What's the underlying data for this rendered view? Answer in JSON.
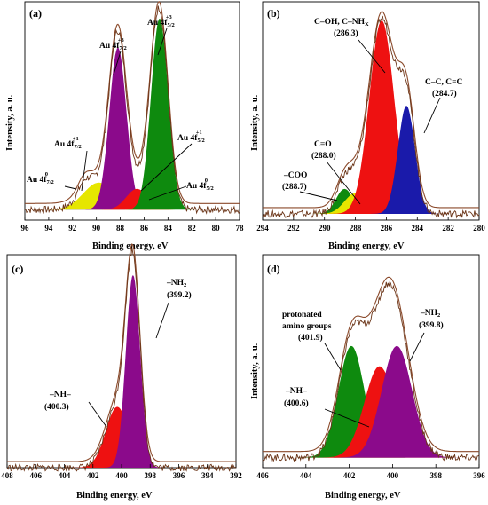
{
  "chart_data": [
    {
      "type": "area",
      "panel": "(a)",
      "xlabel": "Binding energy, eV",
      "ylabel": "Intensity, a. u.",
      "xlim": [
        96,
        78
      ],
      "x_ticks": [
        96,
        94,
        92,
        90,
        88,
        86,
        84,
        82,
        80,
        78
      ],
      "ylim": [
        0,
        1.05
      ],
      "baseline": 0.05,
      "series": [
        {
          "name": "Au 4f7/2 0",
          "color": "#1a1aaa",
          "center": 91.0,
          "height": 0.06,
          "sigma": 0.55
        },
        {
          "name": "Au 4f7/2 +1",
          "color": "#e6e600",
          "center": 89.8,
          "height": 0.13,
          "sigma": 1.3
        },
        {
          "name": "Au 4f7/2 +3",
          "color": "#8b0a8b",
          "center": 88.2,
          "height": 0.78,
          "sigma": 0.72
        },
        {
          "name": "Au 4f5/2 +1",
          "color": "#ee1111",
          "center": 86.6,
          "height": 0.1,
          "sigma": 0.9
        },
        {
          "name": "Au 4f5/2 0",
          "color": "#f2a020",
          "center": 85.5,
          "height": 0.08,
          "sigma": 0.65
        },
        {
          "name": "Au 4f5/2 +3",
          "color": "#0e8a0e",
          "center": 84.7,
          "height": 0.92,
          "sigma": 0.72
        }
      ],
      "labels": [
        {
          "main": "Au 4f",
          "sub": "7/2",
          "sup": "+3"
        },
        {
          "main": "Au 4f",
          "sub": "5/2",
          "sup": "+3"
        },
        {
          "main": "Au 4f",
          "sub": "7/2",
          "sup": "+1"
        },
        {
          "main": "Au 4f",
          "sub": "5/2",
          "sup": "+1"
        },
        {
          "main": "Au 4f",
          "sub": "7/2",
          "sup": "0"
        },
        {
          "main": "Au 4f",
          "sub": "5/2",
          "sup": "0"
        }
      ]
    },
    {
      "type": "area",
      "panel": "(b)",
      "xlabel": "Binding energy, eV",
      "ylabel": "Intensity, a. u.",
      "xlim": [
        294,
        280
      ],
      "x_ticks": [
        294,
        292,
        290,
        288,
        286,
        284,
        282,
        280
      ],
      "ylim": [
        0,
        1.05
      ],
      "baseline": 0.03,
      "series": [
        {
          "name": "–COO",
          "color": "#0e8a0e",
          "center": 288.7,
          "height": 0.12,
          "sigma": 0.55
        },
        {
          "name": "C=O",
          "color": "#e6e600",
          "center": 288.0,
          "height": 0.1,
          "sigma": 0.7
        },
        {
          "name": "C–OH, C–NHx",
          "color": "#ee1111",
          "center": 286.3,
          "height": 0.93,
          "sigma": 0.8
        },
        {
          "name": "C–C, C=C",
          "color": "#1a1aaa",
          "center": 284.7,
          "height": 0.52,
          "sigma": 0.55
        }
      ],
      "labels": [
        {
          "text": "C–OH, C–NH",
          "sub": "X",
          "value": "(286.3)"
        },
        {
          "text": "C–C, C=C",
          "value": "(284.7)"
        },
        {
          "text": "C=O",
          "value": "(288.0)"
        },
        {
          "text": "–COO",
          "value": "(288.7)"
        }
      ]
    },
    {
      "type": "area",
      "panel": "(c)",
      "xlabel": "Binding energy, eV",
      "ylabel": "Intensity, a. u.",
      "xlim": [
        408,
        392
      ],
      "x_ticks": [
        408,
        406,
        404,
        402,
        400,
        398,
        396,
        394,
        392
      ],
      "ylim": [
        0,
        1.05
      ],
      "baseline": 0.0,
      "series": [
        {
          "name": "–NH–",
          "color": "#ee1111",
          "center": 400.3,
          "height": 0.3,
          "sigma": 0.8
        },
        {
          "name": "–NH2",
          "color": "#8b0a8b",
          "center": 399.2,
          "height": 0.95,
          "sigma": 0.5
        }
      ],
      "labels": [
        {
          "text": "–NH",
          "sub": "2",
          "value": "(399.2)"
        },
        {
          "text": "–NH–",
          "value": "(400.3)"
        }
      ]
    },
    {
      "type": "area",
      "panel": "(d)",
      "xlabel": "Binding energy, eV",
      "ylabel": "Intensity, a. u.",
      "xlim": [
        406,
        396
      ],
      "x_ticks": [
        406,
        404,
        402,
        400,
        398,
        396
      ],
      "ylim": [
        0,
        1.05
      ],
      "baseline": 0.05,
      "series": [
        {
          "name": "protonated amino groups",
          "color": "#0e8a0e",
          "center": 401.9,
          "height": 0.55,
          "sigma": 0.6
        },
        {
          "name": "–NH–",
          "color": "#ee1111",
          "center": 400.6,
          "height": 0.45,
          "sigma": 0.7
        },
        {
          "name": "–NH2",
          "color": "#8b0a8b",
          "center": 399.8,
          "height": 0.55,
          "sigma": 0.7
        }
      ],
      "labels": [
        {
          "text": "protonated",
          "text2": "amino groups",
          "value": "(401.9)"
        },
        {
          "text": "–NH",
          "sub": "2",
          "value": "(399.8)"
        },
        {
          "text": "–NH–",
          "value": "(400.6)"
        }
      ]
    }
  ]
}
